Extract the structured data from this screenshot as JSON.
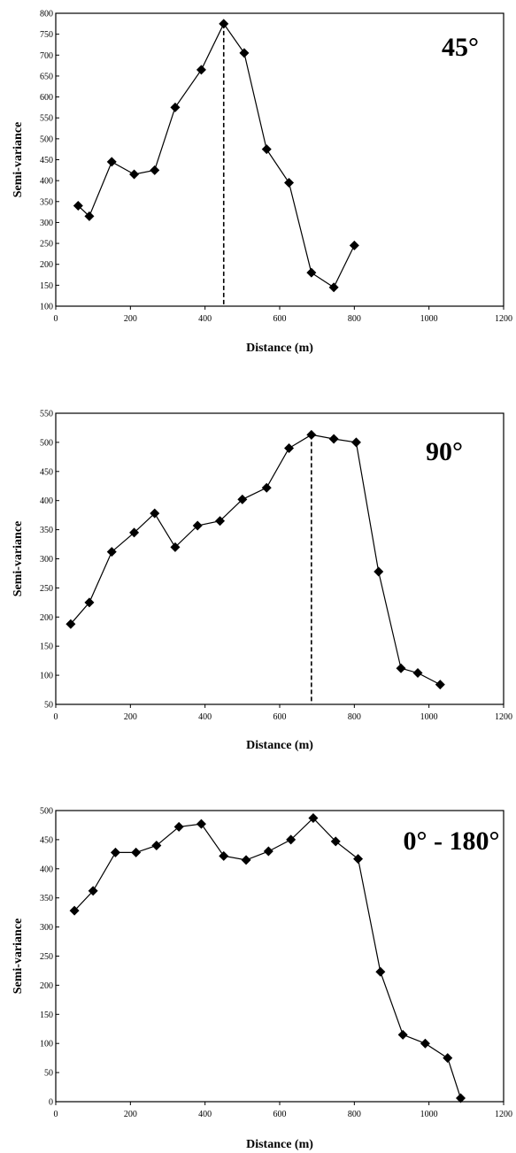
{
  "chart_data": [
    {
      "type": "line",
      "direction_label": "45°",
      "xlabel": "Distance (m)",
      "ylabel": "Semi-variance",
      "xlim": [
        0,
        1200
      ],
      "ylim": [
        100,
        800
      ],
      "x_ticks": [
        "0",
        "200",
        "400",
        "600",
        "800",
        "1000",
        "1200"
      ],
      "y_ticks": [
        "100",
        "150",
        "200",
        "250",
        "300",
        "350",
        "400",
        "450",
        "500",
        "550",
        "600",
        "650",
        "700",
        "750",
        "800"
      ],
      "y_tick_values": [
        100,
        150,
        200,
        250,
        300,
        350,
        400,
        450,
        500,
        550,
        600,
        650,
        700,
        750,
        800
      ],
      "x_tick_values": [
        0,
        200,
        400,
        600,
        800,
        1000,
        1200
      ],
      "x": [
        60,
        90,
        150,
        210,
        265,
        320,
        390,
        450,
        505,
        565,
        625,
        685,
        745,
        800
      ],
      "y": [
        340,
        315,
        445,
        415,
        425,
        575,
        665,
        775,
        705,
        475,
        395,
        180,
        145,
        245
      ],
      "range_line_x": 450,
      "marker": "diamond",
      "grid": false
    },
    {
      "type": "line",
      "direction_label": "90°",
      "xlabel": "Distance (m)",
      "ylabel": "Semi-variance",
      "xlim": [
        0,
        1200
      ],
      "ylim": [
        50,
        550
      ],
      "x_ticks": [
        "0",
        "200",
        "400",
        "600",
        "800",
        "1000",
        "1200"
      ],
      "y_ticks": [
        "50",
        "100",
        "150",
        "200",
        "250",
        "300",
        "350",
        "400",
        "450",
        "500",
        "550"
      ],
      "y_tick_values": [
        50,
        100,
        150,
        200,
        250,
        300,
        350,
        400,
        450,
        500,
        550
      ],
      "x_tick_values": [
        0,
        200,
        400,
        600,
        800,
        1000,
        1200
      ],
      "x": [
        40,
        90,
        150,
        210,
        265,
        320,
        380,
        440,
        500,
        565,
        625,
        685,
        745,
        805,
        865,
        925,
        970,
        1030
      ],
      "y": [
        188,
        225,
        312,
        345,
        378,
        320,
        357,
        365,
        402,
        422,
        490,
        513,
        506,
        500,
        278,
        112,
        104,
        84
      ],
      "range_line_x": 685,
      "marker": "diamond",
      "grid": false
    },
    {
      "type": "line",
      "direction_label": "0° - 180°",
      "xlabel": "Distance (m)",
      "ylabel": "Semi-variance",
      "xlim": [
        0,
        1200
      ],
      "ylim": [
        0,
        500
      ],
      "x_ticks": [
        "0",
        "200",
        "400",
        "600",
        "800",
        "1000",
        "1200"
      ],
      "y_ticks": [
        "0",
        "50",
        "100",
        "150",
        "200",
        "250",
        "300",
        "350",
        "400",
        "450",
        "500"
      ],
      "y_tick_values": [
        0,
        50,
        100,
        150,
        200,
        250,
        300,
        350,
        400,
        450,
        500
      ],
      "x_tick_values": [
        0,
        200,
        400,
        600,
        800,
        1000,
        1200
      ],
      "x": [
        50,
        100,
        160,
        215,
        270,
        330,
        390,
        450,
        510,
        570,
        630,
        690,
        750,
        810,
        870,
        930,
        990,
        1050,
        1085
      ],
      "y": [
        328,
        362,
        428,
        428,
        440,
        472,
        477,
        422,
        415,
        430,
        450,
        487,
        447,
        417,
        223,
        115,
        100,
        75,
        6
      ],
      "range_line_x": null,
      "marker": "diamond",
      "grid": false
    }
  ]
}
